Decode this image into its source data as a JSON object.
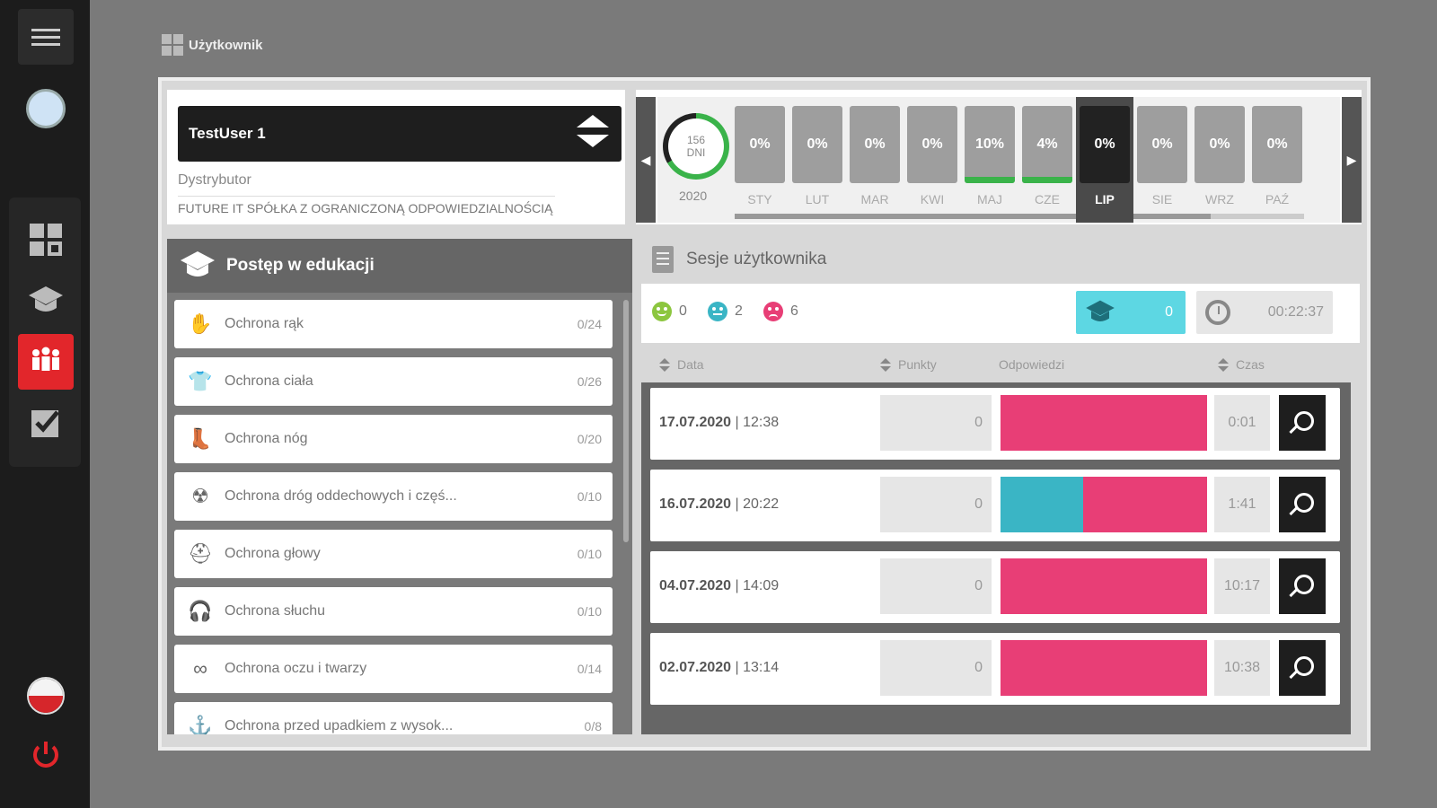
{
  "header": {
    "title": "Użytkownik"
  },
  "user": {
    "name": "TestUser 1",
    "distributor_label": "Dystrybutor",
    "distributor_value": "FUTURE IT SPÓŁKA Z OGRANICZONĄ ODPOWIEDZIALNOŚCIĄ"
  },
  "calendar": {
    "days_value": "156",
    "days_unit": "DNI",
    "year": "2020",
    "months": [
      {
        "label": "STY",
        "value": "0%",
        "progress": 0
      },
      {
        "label": "LUT",
        "value": "0%",
        "progress": 0
      },
      {
        "label": "MAR",
        "value": "0%",
        "progress": 0
      },
      {
        "label": "KWI",
        "value": "0%",
        "progress": 0
      },
      {
        "label": "MAJ",
        "value": "10%",
        "progress": 0.1
      },
      {
        "label": "CZE",
        "value": "4%",
        "progress": 0.04
      },
      {
        "label": "LIP",
        "value": "0%",
        "progress": 0,
        "active": true
      },
      {
        "label": "SIE",
        "value": "0%",
        "progress": 0
      },
      {
        "label": "WRZ",
        "value": "0%",
        "progress": 0
      },
      {
        "label": "PAŹ",
        "value": "0%",
        "progress": 0
      }
    ]
  },
  "education": {
    "title": "Postęp w edukacji",
    "items": [
      {
        "icon": "gloves-icon",
        "label": "Ochrona rąk",
        "count": "0/24"
      },
      {
        "icon": "apron-icon",
        "label": "Ochrona ciała",
        "count": "0/26"
      },
      {
        "icon": "boot-icon",
        "label": "Ochrona nóg",
        "count": "0/20"
      },
      {
        "icon": "respirator-icon",
        "label": "Ochrona dróg oddechowych i częś...",
        "count": "0/10"
      },
      {
        "icon": "helmet-icon",
        "label": "Ochrona głowy",
        "count": "0/10"
      },
      {
        "icon": "headphones-icon",
        "label": "Ochrona słuchu",
        "count": "0/10"
      },
      {
        "icon": "goggles-icon",
        "label": "Ochrona oczu i twarzy",
        "count": "0/14"
      },
      {
        "icon": "harness-icon",
        "label": "Ochrona przed upadkiem z wysok...",
        "count": "0/8"
      }
    ]
  },
  "sessions": {
    "title": "Sesje użytkownika",
    "happy": "0",
    "neutral": "2",
    "sad": "6",
    "edu_count": "0",
    "total_time": "00:22:37",
    "columns": {
      "date": "Data",
      "points": "Punkty",
      "answers": "Odpowiedzi",
      "time": "Czas"
    },
    "rows": [
      {
        "date": "17.07.2020",
        "hour": "12:38",
        "points": "0",
        "correct_fraction": 0,
        "time": "0:01"
      },
      {
        "date": "16.07.2020",
        "hour": "20:22",
        "points": "0",
        "correct_fraction": 0.4,
        "time": "1:41"
      },
      {
        "date": "04.07.2020",
        "hour": "14:09",
        "points": "0",
        "correct_fraction": 0,
        "time": "10:17"
      },
      {
        "date": "02.07.2020",
        "hour": "13:14",
        "points": "0",
        "correct_fraction": 0,
        "time": "10:38"
      }
    ]
  },
  "colors": {
    "accent_red": "#e2262b",
    "correct_teal": "#3ab5c5",
    "wrong_pink": "#e83e76",
    "progress_green": "#3ab34a",
    "happy": "#8cc63f",
    "neutral": "#3ab5c5",
    "sad": "#e83e76"
  }
}
